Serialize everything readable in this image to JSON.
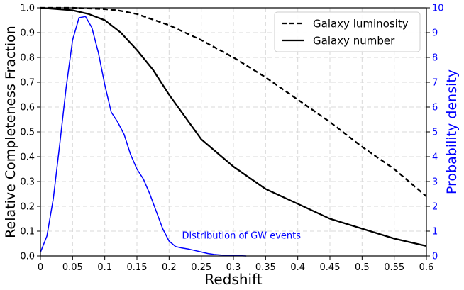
{
  "chart_data": {
    "type": "line",
    "x_axis": {
      "label": "Redshift",
      "range": [
        0,
        0.6
      ],
      "ticks": [
        0,
        0.05,
        0.1,
        0.15,
        0.2,
        0.25,
        0.3,
        0.35,
        0.4,
        0.45,
        0.5,
        0.55,
        0.6
      ],
      "tick_labels": [
        "0",
        "0.05",
        "0.1",
        "0.15",
        "0.2",
        "0.25",
        "0.3",
        "0.35",
        "0.4",
        "0.45",
        "0.5",
        "0.55",
        "0.6"
      ]
    },
    "y_axis_left": {
      "label": "Relative Completeness Fraction",
      "range": [
        0,
        1
      ],
      "ticks": [
        0,
        0.1,
        0.2,
        0.3,
        0.4,
        0.5,
        0.6,
        0.7,
        0.8,
        0.9,
        1.0
      ],
      "tick_labels": [
        "0.0",
        "0.1",
        "0.2",
        "0.3",
        "0.4",
        "0.5",
        "0.6",
        "0.7",
        "0.8",
        "0.9",
        "1.0"
      ]
    },
    "y_axis_right": {
      "label": "Probability density",
      "range": [
        0,
        10
      ],
      "ticks": [
        0,
        1,
        2,
        3,
        4,
        5,
        6,
        7,
        8,
        9,
        10
      ],
      "tick_labels": [
        "0",
        "1",
        "2",
        "3",
        "4",
        "5",
        "6",
        "7",
        "8",
        "9",
        "10"
      ],
      "color": "#0000ff"
    },
    "grid": true,
    "legend": {
      "position": "top-right",
      "entries": [
        {
          "label": "Galaxy luminosity",
          "style": "dashed"
        },
        {
          "label": "Galaxy number",
          "style": "solid"
        }
      ]
    },
    "annotation": {
      "text": "Distribution of GW events",
      "x": 0.22,
      "y": 0.7,
      "axis": "right",
      "color": "#0000ff"
    },
    "series": [
      {
        "name": "Galaxy luminosity",
        "axis": "left",
        "style": "dashed",
        "color": "#000000",
        "x": [
          0,
          0.05,
          0.1,
          0.12,
          0.15,
          0.2,
          0.25,
          0.3,
          0.35,
          0.4,
          0.45,
          0.5,
          0.55,
          0.6
        ],
        "y": [
          1.0,
          1.0,
          0.995,
          0.99,
          0.975,
          0.93,
          0.87,
          0.8,
          0.72,
          0.63,
          0.54,
          0.44,
          0.35,
          0.24
        ]
      },
      {
        "name": "Galaxy number",
        "axis": "left",
        "style": "solid",
        "color": "#000000",
        "x": [
          0,
          0.05,
          0.075,
          0.1,
          0.125,
          0.15,
          0.175,
          0.2,
          0.225,
          0.25,
          0.3,
          0.35,
          0.4,
          0.45,
          0.5,
          0.55,
          0.6
        ],
        "y": [
          1.0,
          0.99,
          0.975,
          0.95,
          0.9,
          0.83,
          0.75,
          0.65,
          0.56,
          0.47,
          0.36,
          0.27,
          0.21,
          0.15,
          0.11,
          0.07,
          0.04
        ]
      },
      {
        "name": "Distribution of GW events",
        "axis": "right",
        "style": "solid",
        "color": "#0000ff",
        "x": [
          0,
          0.01,
          0.02,
          0.03,
          0.04,
          0.05,
          0.06,
          0.07,
          0.08,
          0.09,
          0.1,
          0.11,
          0.12,
          0.13,
          0.14,
          0.15,
          0.16,
          0.17,
          0.18,
          0.19,
          0.2,
          0.21,
          0.22,
          0.23,
          0.24,
          0.25,
          0.26,
          0.27,
          0.28,
          0.3,
          0.32
        ],
        "y": [
          0.15,
          0.8,
          2.3,
          4.5,
          6.8,
          8.7,
          9.6,
          9.65,
          9.2,
          8.2,
          6.9,
          5.8,
          5.4,
          4.9,
          4.1,
          3.5,
          3.1,
          2.5,
          1.8,
          1.1,
          0.6,
          0.38,
          0.32,
          0.28,
          0.22,
          0.16,
          0.1,
          0.06,
          0.04,
          0.02,
          0.0
        ]
      }
    ]
  }
}
